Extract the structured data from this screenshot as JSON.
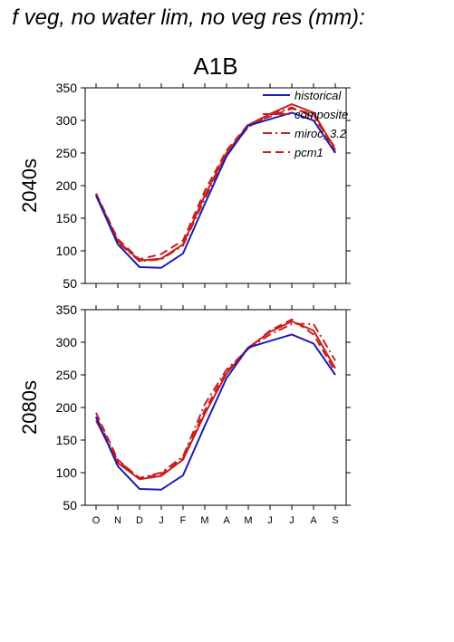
{
  "page": {
    "super_title": "f veg, no water lim, no veg res (mm):",
    "scenario": "A1B"
  },
  "colors": {
    "historical": "#1c1cb4",
    "future": "#c81e1e",
    "axis": "#000000"
  },
  "chart_data": [
    {
      "type": "line",
      "panel_label": "2040s",
      "categories": [
        "O",
        "N",
        "D",
        "J",
        "F",
        "M",
        "A",
        "M",
        "J",
        "J",
        "A",
        "S"
      ],
      "ylim": [
        50,
        350
      ],
      "yticks": [
        50,
        100,
        150,
        200,
        250,
        300,
        350
      ],
      "show_x_tick_labels": false,
      "legend": {
        "position": "top-right"
      },
      "series": [
        {
          "name": "historical",
          "style": "solid",
          "color": "#1c1cb4",
          "values": [
            185,
            110,
            75,
            74,
            96,
            172,
            245,
            292,
            302,
            312,
            300,
            250
          ]
        },
        {
          "name": "composite",
          "style": "solid",
          "color": "#c81e1e",
          "values": [
            187,
            115,
            85,
            88,
            110,
            185,
            250,
            293,
            310,
            325,
            312,
            255
          ]
        },
        {
          "name": "miroc_3.2",
          "style": "dashdot",
          "color": "#c81e1e",
          "values": [
            185,
            113,
            84,
            87,
            108,
            180,
            248,
            290,
            308,
            320,
            305,
            258
          ]
        },
        {
          "name": "pcm1",
          "style": "longdash",
          "color": "#c81e1e",
          "values": [
            188,
            118,
            87,
            95,
            116,
            192,
            254,
            294,
            306,
            318,
            310,
            252
          ]
        }
      ]
    },
    {
      "type": "line",
      "panel_label": "2080s",
      "categories": [
        "O",
        "N",
        "D",
        "J",
        "F",
        "M",
        "A",
        "M",
        "J",
        "J",
        "A",
        "S"
      ],
      "ylim": [
        50,
        350
      ],
      "yticks": [
        50,
        100,
        150,
        200,
        250,
        300,
        350
      ],
      "show_x_tick_labels": true,
      "series": [
        {
          "name": "historical",
          "style": "solid",
          "color": "#1c1cb4",
          "values": [
            185,
            110,
            75,
            74,
            96,
            172,
            245,
            292,
            302,
            312,
            298,
            250
          ]
        },
        {
          "name": "composite",
          "style": "solid",
          "color": "#c81e1e",
          "values": [
            180,
            115,
            90,
            95,
            120,
            190,
            252,
            292,
            316,
            332,
            318,
            260
          ]
        },
        {
          "name": "miroc_3.2",
          "style": "dashdot",
          "color": "#c81e1e",
          "values": [
            186,
            118,
            92,
            100,
            125,
            205,
            258,
            290,
            312,
            328,
            328,
            272
          ]
        },
        {
          "name": "pcm1",
          "style": "longdash",
          "color": "#c81e1e",
          "values": [
            192,
            120,
            91,
            98,
            122,
            196,
            255,
            290,
            318,
            335,
            312,
            255
          ]
        }
      ]
    }
  ]
}
